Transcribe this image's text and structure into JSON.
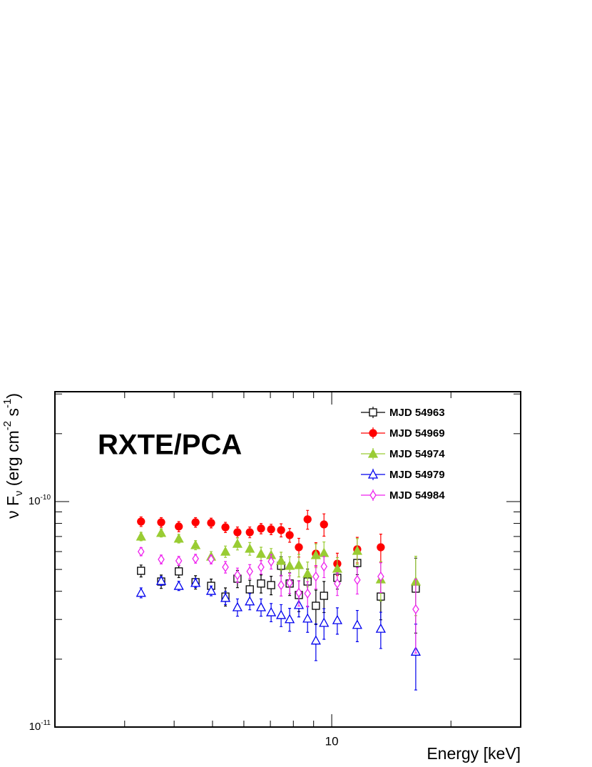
{
  "chart_data": {
    "type": "scatter",
    "annotation": "RXTE/PCA",
    "xlabel": "Energy [keV]",
    "ylabel": [
      {
        "text": "ν F"
      },
      {
        "text": "ν",
        "sub": true
      },
      {
        "text": " (erg cm"
      },
      {
        "text": "-2",
        "sup": true
      },
      {
        "text": " s"
      },
      {
        "text": "-1",
        "sup": true
      },
      {
        "text": ")"
      }
    ],
    "xscale": "log",
    "yscale": "log",
    "xlim": [
      2,
      30
    ],
    "ylim": [
      1e-11,
      3.07e-10
    ],
    "xticks": [
      10
    ],
    "xminorticks": [
      3,
      4,
      5,
      6,
      7,
      8,
      9,
      20
    ],
    "yticks": [
      {
        "value": 1e-11,
        "label": "10",
        "exponent": "-11"
      },
      {
        "value": 1e-10,
        "label": "10",
        "exponent": "-10"
      }
    ],
    "yminorticks": [
      2e-11,
      3e-11,
      4e-11,
      5e-11,
      6e-11,
      7e-11,
      8e-11,
      9e-11,
      2e-10,
      3e-10
    ],
    "legend": "upper right",
    "x": [
      3.3,
      3.71,
      4.11,
      4.53,
      4.96,
      5.39,
      5.78,
      6.21,
      6.63,
      7.03,
      7.45,
      7.83,
      8.26,
      8.69,
      9.12,
      9.56,
      10.33,
      11.6,
      13.3,
      16.3
    ],
    "series": [
      {
        "name": "MJD 54963",
        "color": "#000000",
        "marker": "square",
        "filled": false,
        "values": [
          4.93e-11,
          4.42e-11,
          4.9e-11,
          4.39e-11,
          4.23e-11,
          3.79e-11,
          4.55e-11,
          4.08e-11,
          4.33e-11,
          4.26e-11,
          5.19e-11,
          4.33e-11,
          3.85e-11,
          4.42e-11,
          3.45e-11,
          3.82e-11,
          4.59e-11,
          5.34e-11,
          3.79e-11,
          4.11e-11
        ],
        "errors": [
          3e-12,
          3e-12,
          3e-12,
          3e-12,
          3e-12,
          3.5e-12,
          4e-12,
          4e-12,
          4e-12,
          4e-12,
          5e-12,
          5e-12,
          6e-12,
          6e-12,
          6e-12,
          6e-12,
          5e-12,
          6e-12,
          8e-12,
          1.5e-11
        ]
      },
      {
        "name": "MJD 54969",
        "color": "#ff0000",
        "marker": "circle",
        "filled": true,
        "values": [
          8.15e-11,
          8.09e-11,
          7.75e-11,
          8.09e-11,
          8.04e-11,
          7.69e-11,
          7.31e-11,
          7.31e-11,
          7.59e-11,
          7.53e-11,
          7.47e-11,
          7.1e-11,
          6.27e-11,
          8.34e-11,
          5.87e-11,
          7.92e-11,
          5.3e-11,
          6.14e-11,
          6.27e-11,
          null
        ],
        "errors": [
          4e-12,
          4e-12,
          4e-12,
          4e-12,
          4e-12,
          4e-12,
          4e-12,
          4e-12,
          4e-12,
          4e-12,
          5e-12,
          5e-12,
          6e-12,
          8e-12,
          7e-12,
          9e-12,
          6e-12,
          8e-12,
          9e-12,
          null
        ]
      },
      {
        "name": "MJD 54974",
        "color": "#99cc33",
        "marker": "triangle",
        "filled": true,
        "values": [
          7e-11,
          7.26e-11,
          6.85e-11,
          6.41e-11,
          5.7e-11,
          6e-11,
          6.5e-11,
          6.18e-11,
          5.87e-11,
          5.79e-11,
          5.46e-11,
          5.19e-11,
          5.23e-11,
          4.79e-11,
          5.79e-11,
          5.92e-11,
          5.04e-11,
          6.05e-11,
          4.52e-11,
          4.42e-11
        ],
        "errors": [
          3e-12,
          3e-12,
          3e-12,
          3e-12,
          3e-12,
          3.5e-12,
          4e-12,
          4e-12,
          4e-12,
          4e-12,
          5e-12,
          5e-12,
          6e-12,
          6e-12,
          7e-12,
          7e-12,
          6e-12,
          8e-12,
          9e-12,
          1.3e-11
        ]
      },
      {
        "name": "MJD 54979",
        "color": "#0000ee",
        "marker": "triangle",
        "filled": false,
        "values": [
          3.94e-11,
          4.45e-11,
          4.23e-11,
          4.36e-11,
          4.02e-11,
          3.74e-11,
          3.4e-11,
          3.61e-11,
          3.4e-11,
          3.23e-11,
          3.14e-11,
          3.01e-11,
          3.48e-11,
          3.03e-11,
          2.42e-11,
          2.9e-11,
          2.98e-11,
          2.84e-11,
          2.73e-11,
          2.16e-11
        ],
        "errors": [
          2e-12,
          2e-12,
          2e-12,
          2e-12,
          2e-12,
          2.5e-12,
          3e-12,
          3e-12,
          3e-12,
          3e-12,
          3.5e-12,
          3.5e-12,
          4e-12,
          4e-12,
          4.5e-12,
          4.5e-12,
          4e-12,
          4.5e-12,
          5e-12,
          7e-12
        ]
      },
      {
        "name": "MJD 54984",
        "color": "#ee22ee",
        "marker": "diamond",
        "filled": false,
        "values": [
          6e-11,
          5.54e-11,
          5.46e-11,
          5.58e-11,
          5.54e-11,
          5.12e-11,
          4.72e-11,
          4.9e-11,
          5.12e-11,
          5.42e-11,
          4.26e-11,
          4.36e-11,
          3.94e-11,
          3.91e-11,
          4.65e-11,
          5.15e-11,
          4.33e-11,
          4.49e-11,
          4.65e-11,
          3.33e-11
        ],
        "errors": [
          2.5e-12,
          2.5e-12,
          2.5e-12,
          2.5e-12,
          2.5e-12,
          3e-12,
          3.5e-12,
          3.5e-12,
          3.5e-12,
          4e-12,
          4.5e-12,
          4.5e-12,
          5e-12,
          5e-12,
          5.5e-12,
          5.5e-12,
          5e-12,
          6e-12,
          7e-12,
          1.2e-11
        ]
      }
    ]
  }
}
